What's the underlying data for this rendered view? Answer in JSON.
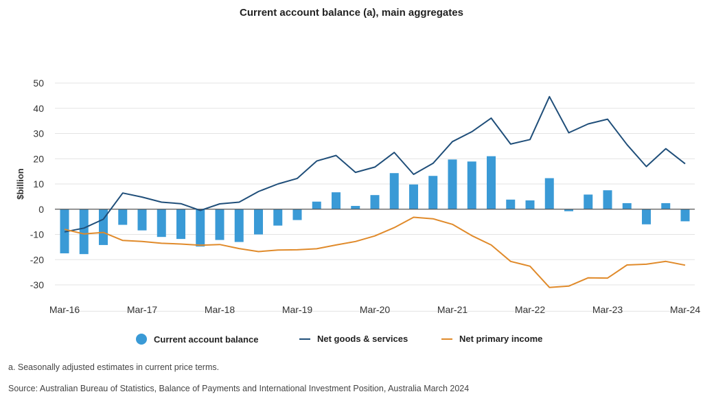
{
  "title": "Current account balance (a), main aggregates",
  "colors": {
    "bar": "#3a9ad6",
    "goods": "#1f4e79",
    "income": "#e08a2a",
    "grid": "#e3e3e3",
    "zero": "#555555"
  },
  "legend": [
    {
      "label": "Current account balance",
      "kind": "dot",
      "color": "#3a9ad6"
    },
    {
      "label": "Net goods & services",
      "kind": "line",
      "color": "#1f4e79"
    },
    {
      "label": "Net primary income",
      "kind": "line",
      "color": "#e08a2a"
    }
  ],
  "footnote": "a. Seasonally adjusted estimates in current price terms.",
  "source": "Source: Australian Bureau of Statistics, Balance of Payments and International Investment Position, Australia March 2024",
  "chart_data": {
    "type": "bar",
    "title": "Current account balance (a), main aggregates",
    "ylabel": "$billion",
    "xlabel": "",
    "ylim": [
      -35,
      50
    ],
    "yticks": [
      -30,
      -20,
      -10,
      0,
      10,
      20,
      30,
      40,
      50
    ],
    "x_tick_labels": [
      "Mar-16",
      "Mar-17",
      "Mar-18",
      "Mar-19",
      "Mar-20",
      "Mar-21",
      "Mar-22",
      "Mar-23",
      "Mar-24"
    ],
    "grid": true,
    "legend_position": "bottom",
    "categories": [
      "Mar-16",
      "Jun-16",
      "Sep-16",
      "Dec-16",
      "Mar-17",
      "Jun-17",
      "Sep-17",
      "Dec-17",
      "Mar-18",
      "Jun-18",
      "Sep-18",
      "Dec-18",
      "Mar-19",
      "Jun-19",
      "Sep-19",
      "Dec-19",
      "Mar-20",
      "Jun-20",
      "Sep-20",
      "Dec-20",
      "Mar-21",
      "Jun-21",
      "Sep-21",
      "Dec-21",
      "Mar-22",
      "Jun-22",
      "Sep-22",
      "Dec-22",
      "Mar-23",
      "Jun-23",
      "Sep-23",
      "Dec-23",
      "Mar-24"
    ],
    "series": [
      {
        "name": "Current account balance",
        "type": "bar",
        "values": [
          -17.5,
          -17.8,
          -14.2,
          -6.2,
          -8.4,
          -11.0,
          -11.8,
          -14.8,
          -12.2,
          -13.0,
          -10.0,
          -6.5,
          -4.3,
          3.0,
          6.7,
          1.3,
          5.6,
          14.3,
          9.8,
          13.2,
          19.7,
          18.9,
          21.0,
          3.8,
          3.5,
          12.3,
          -0.8,
          5.8,
          7.5,
          2.4,
          -6.0,
          2.4,
          -4.8
        ]
      },
      {
        "name": "Net goods & services",
        "type": "line",
        "values": [
          -9.0,
          -7.5,
          -4.0,
          6.4,
          4.8,
          2.8,
          2.2,
          -0.5,
          2.1,
          2.8,
          7.0,
          10.0,
          12.2,
          19.1,
          21.3,
          14.6,
          16.7,
          22.5,
          13.8,
          18.2,
          26.8,
          30.7,
          36.1,
          25.8,
          27.6,
          44.6,
          30.3,
          33.8,
          35.7,
          25.6,
          16.9,
          24.0,
          18.0
        ]
      },
      {
        "name": "Net primary income",
        "type": "line",
        "values": [
          -8.0,
          -9.8,
          -9.2,
          -12.4,
          -12.8,
          -13.5,
          -13.8,
          -14.3,
          -14.0,
          -15.6,
          -16.8,
          -16.2,
          -16.1,
          -15.7,
          -14.2,
          -12.8,
          -10.6,
          -7.3,
          -3.2,
          -3.8,
          -6.0,
          -10.5,
          -14.2,
          -20.7,
          -22.6,
          -31.0,
          -30.5,
          -27.2,
          -27.3,
          -22.1,
          -21.8,
          -20.7,
          -22.2
        ]
      }
    ]
  }
}
